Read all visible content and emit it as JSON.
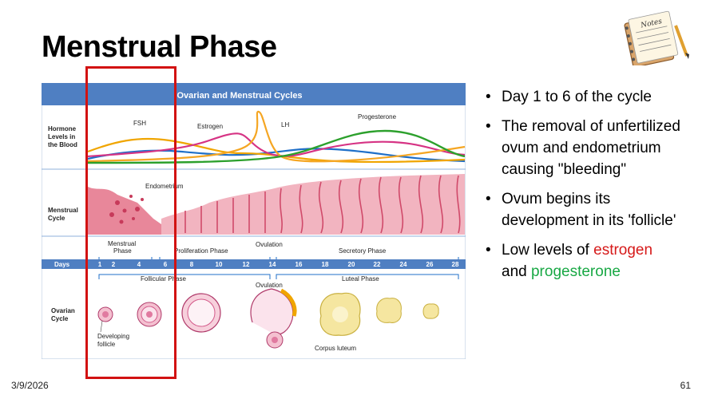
{
  "slide": {
    "title": "Menstrual Phase",
    "date": "3/9/2026",
    "page": "61"
  },
  "diagram": {
    "header": "Ovarian and Menstrual Cycles",
    "row_labels": {
      "hormone": [
        "Hormone",
        "Levels in",
        "the Blood"
      ],
      "menstrual": [
        "Menstrual",
        "Cycle"
      ],
      "ovarian": [
        "Ovarian",
        "Cycle"
      ],
      "days": "Days"
    },
    "hormones": {
      "fsh": "FSH",
      "estrogen": "Estrogen",
      "lh": "LH",
      "progesterone": "Progesterone"
    },
    "endometrium": "Endometrium",
    "phases": {
      "menstrual": [
        "Menstrual",
        "Phase"
      ],
      "proliferation": "Proliferation Phase",
      "ovulation": "Ovulation",
      "secretory": "Secretory Phase",
      "follicular": "Follicular Phase",
      "ovulation2": "Ovulation",
      "luteal": "Luteal Phase"
    },
    "days": [
      "1",
      "2",
      "4",
      "6",
      "8",
      "10",
      "12",
      "14",
      "16",
      "18",
      "20",
      "22",
      "24",
      "26",
      "28"
    ],
    "ovarian_labels": {
      "developing": [
        "Developing",
        "follicle"
      ],
      "corpus": "Corpus luteum"
    },
    "colors": {
      "header": "#4f7fc2",
      "fsh": "#f0a500",
      "estrogen": "#d63384",
      "lh": "#f5a623",
      "progesterone": "#2ca02c",
      "blue": "#1f6fc8",
      "tissue": "#e8879a"
    }
  },
  "bullets": {
    "b1": "Day 1 to 6 of the cycle",
    "b2": "The removal of unfertilized ovum and endometrium causing \"bleeding\"",
    "b3": "Ovum begins its development in its 'follicle'",
    "b4_pre": "Low levels of ",
    "b4_estrogen": "estrogen",
    "b4_mid": "and ",
    "b4_progesterone": "progesterone"
  },
  "icons": {
    "notes": "notes-icon"
  },
  "notes_label": "Notes"
}
